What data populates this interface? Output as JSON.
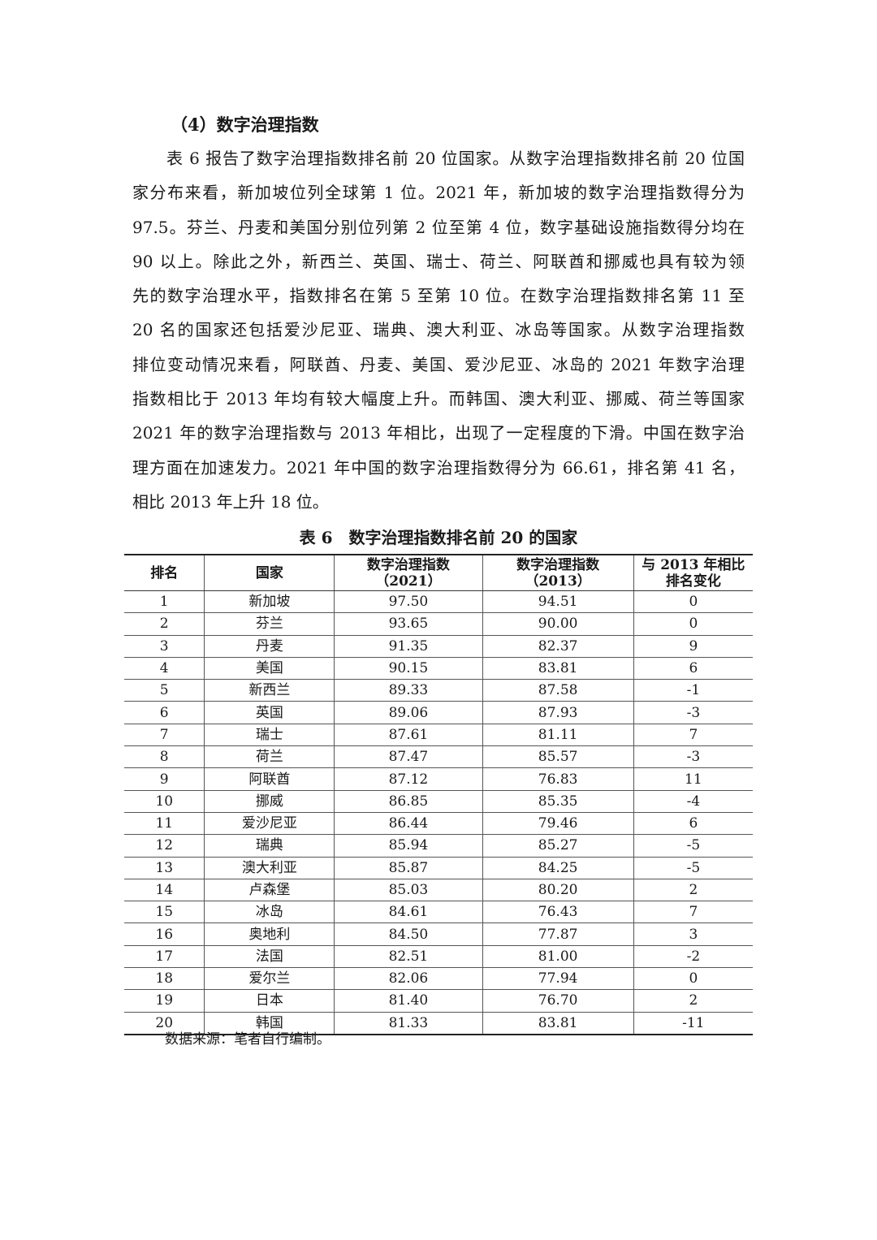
{
  "heading": "（4）数字治理指数",
  "paragraph": [
    "表 6 报告了数字治理指数排名前 20 位国家。从数字治理指数排名前 20 位国",
    "家分布来看，新加坡位列全球第 1 位。2021 年，新加坡的数字治理指数得分为",
    "97.5。芬兰、丹麦和美国分别位列第 2 位至第 4 位，数字基础设施指数得分均在",
    "90 以上。除此之外，新西兰、英国、瑞士、荷兰、阿联酋和挪威也具有较为领",
    "先的数字治理水平，指数排名在第 5 至第 10 位。在数字治理指数排名第 11 至",
    "20 名的国家还包括爱沙尼亚、瑞典、澳大利亚、冰岛等国家。从数字治理指数",
    "排位变动情况来看，阿联酋、丹麦、美国、爱沙尼亚、冰岛的 2021 年数字治理",
    "指数相比于 2013 年均有较大幅度上升。而韩国、澳大利亚、挪威、荷兰等国家",
    "2021 年的数字治理指数与 2013 年相比，出现了一定程度的下滑。中国在数字治",
    "理方面在加速发力。2021 年中国的数字治理指数得分为 66.61，排名第 41 名，",
    "相比 2013 年上升 18 位。"
  ],
  "table": {
    "caption": "表 6　数字治理指数排名前 20 的国家",
    "headers": [
      {
        "l1": "排名",
        "l2": ""
      },
      {
        "l1": "国家",
        "l2": ""
      },
      {
        "l1": "数字治理指数",
        "l2": "（2021）"
      },
      {
        "l1": "数字治理指数",
        "l2": "（2013）"
      },
      {
        "l1": "与 2013 年相比",
        "l2": "排名变化"
      }
    ],
    "rows": [
      [
        "1",
        "新加坡",
        "97.50",
        "94.51",
        "0"
      ],
      [
        "2",
        "芬兰",
        "93.65",
        "90.00",
        "0"
      ],
      [
        "3",
        "丹麦",
        "91.35",
        "82.37",
        "9"
      ],
      [
        "4",
        "美国",
        "90.15",
        "83.81",
        "6"
      ],
      [
        "5",
        "新西兰",
        "89.33",
        "87.58",
        "-1"
      ],
      [
        "6",
        "英国",
        "89.06",
        "87.93",
        "-3"
      ],
      [
        "7",
        "瑞士",
        "87.61",
        "81.11",
        "7"
      ],
      [
        "8",
        "荷兰",
        "87.47",
        "85.57",
        "-3"
      ],
      [
        "9",
        "阿联酋",
        "87.12",
        "76.83",
        "11"
      ],
      [
        "10",
        "挪威",
        "86.85",
        "85.35",
        "-4"
      ],
      [
        "11",
        "爱沙尼亚",
        "86.44",
        "79.46",
        "6"
      ],
      [
        "12",
        "瑞典",
        "85.94",
        "85.27",
        "-5"
      ],
      [
        "13",
        "澳大利亚",
        "85.87",
        "84.25",
        "-5"
      ],
      [
        "14",
        "卢森堡",
        "85.03",
        "80.20",
        "2"
      ],
      [
        "15",
        "冰岛",
        "84.61",
        "76.43",
        "7"
      ],
      [
        "16",
        "奥地利",
        "84.50",
        "77.87",
        "3"
      ],
      [
        "17",
        "法国",
        "82.51",
        "81.00",
        "-2"
      ],
      [
        "18",
        "爱尔兰",
        "82.06",
        "77.94",
        "0"
      ],
      [
        "19",
        "日本",
        "81.40",
        "76.70",
        "2"
      ],
      [
        "20",
        "韩国",
        "81.33",
        "83.81",
        "-11"
      ]
    ],
    "source": "数据来源：笔者自行编制。"
  }
}
